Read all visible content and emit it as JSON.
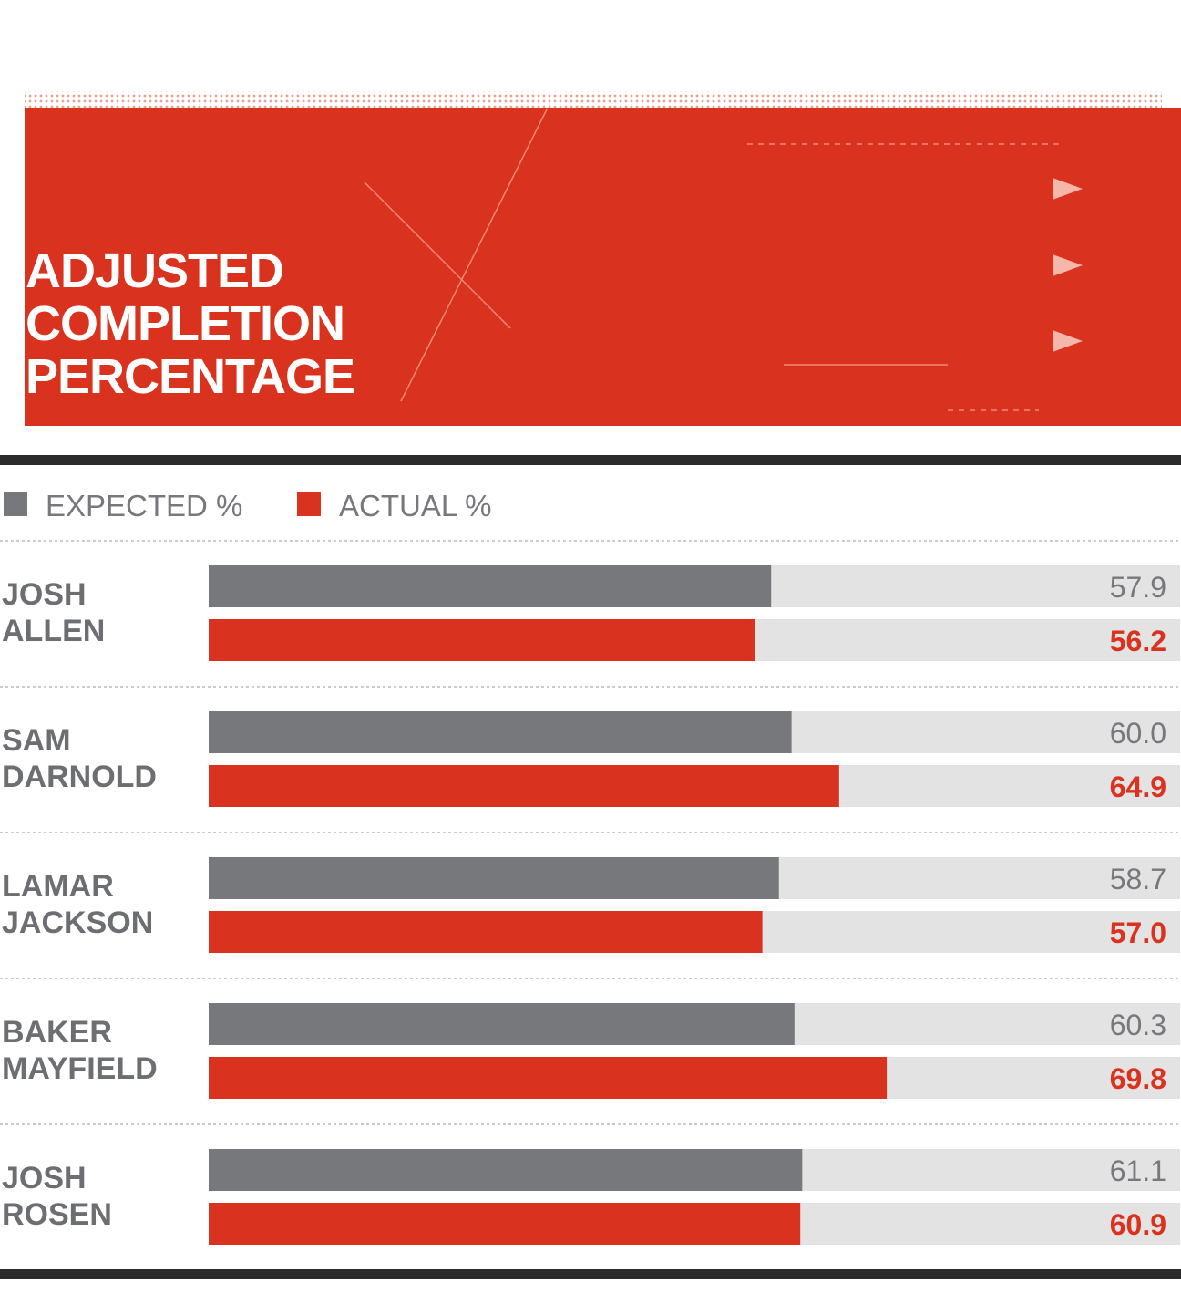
{
  "chart_data": {
    "type": "bar",
    "orientation": "horizontal",
    "title": "ADJUSTED COMPLETION PERCENTAGE",
    "categories": [
      "JOSH ALLEN",
      "SAM DARNOLD",
      "LAMAR JACKSON",
      "BAKER MAYFIELD",
      "JOSH ROSEN"
    ],
    "series": [
      {
        "name": "EXPECTED %",
        "color": "#77787b",
        "values": [
          57.9,
          60.0,
          58.7,
          60.3,
          61.1
        ],
        "value_labels": [
          "57.9",
          "60.0",
          "58.7",
          "60.3",
          "61.1"
        ]
      },
      {
        "name": "ACTUAL %",
        "color": "#d9321e",
        "values": [
          56.2,
          64.9,
          57.0,
          69.8,
          60.9
        ],
        "value_labels": [
          "56.2",
          "64.9",
          "57.0",
          "69.8",
          "60.9"
        ]
      }
    ],
    "xlim": [
      0,
      100
    ]
  }
}
